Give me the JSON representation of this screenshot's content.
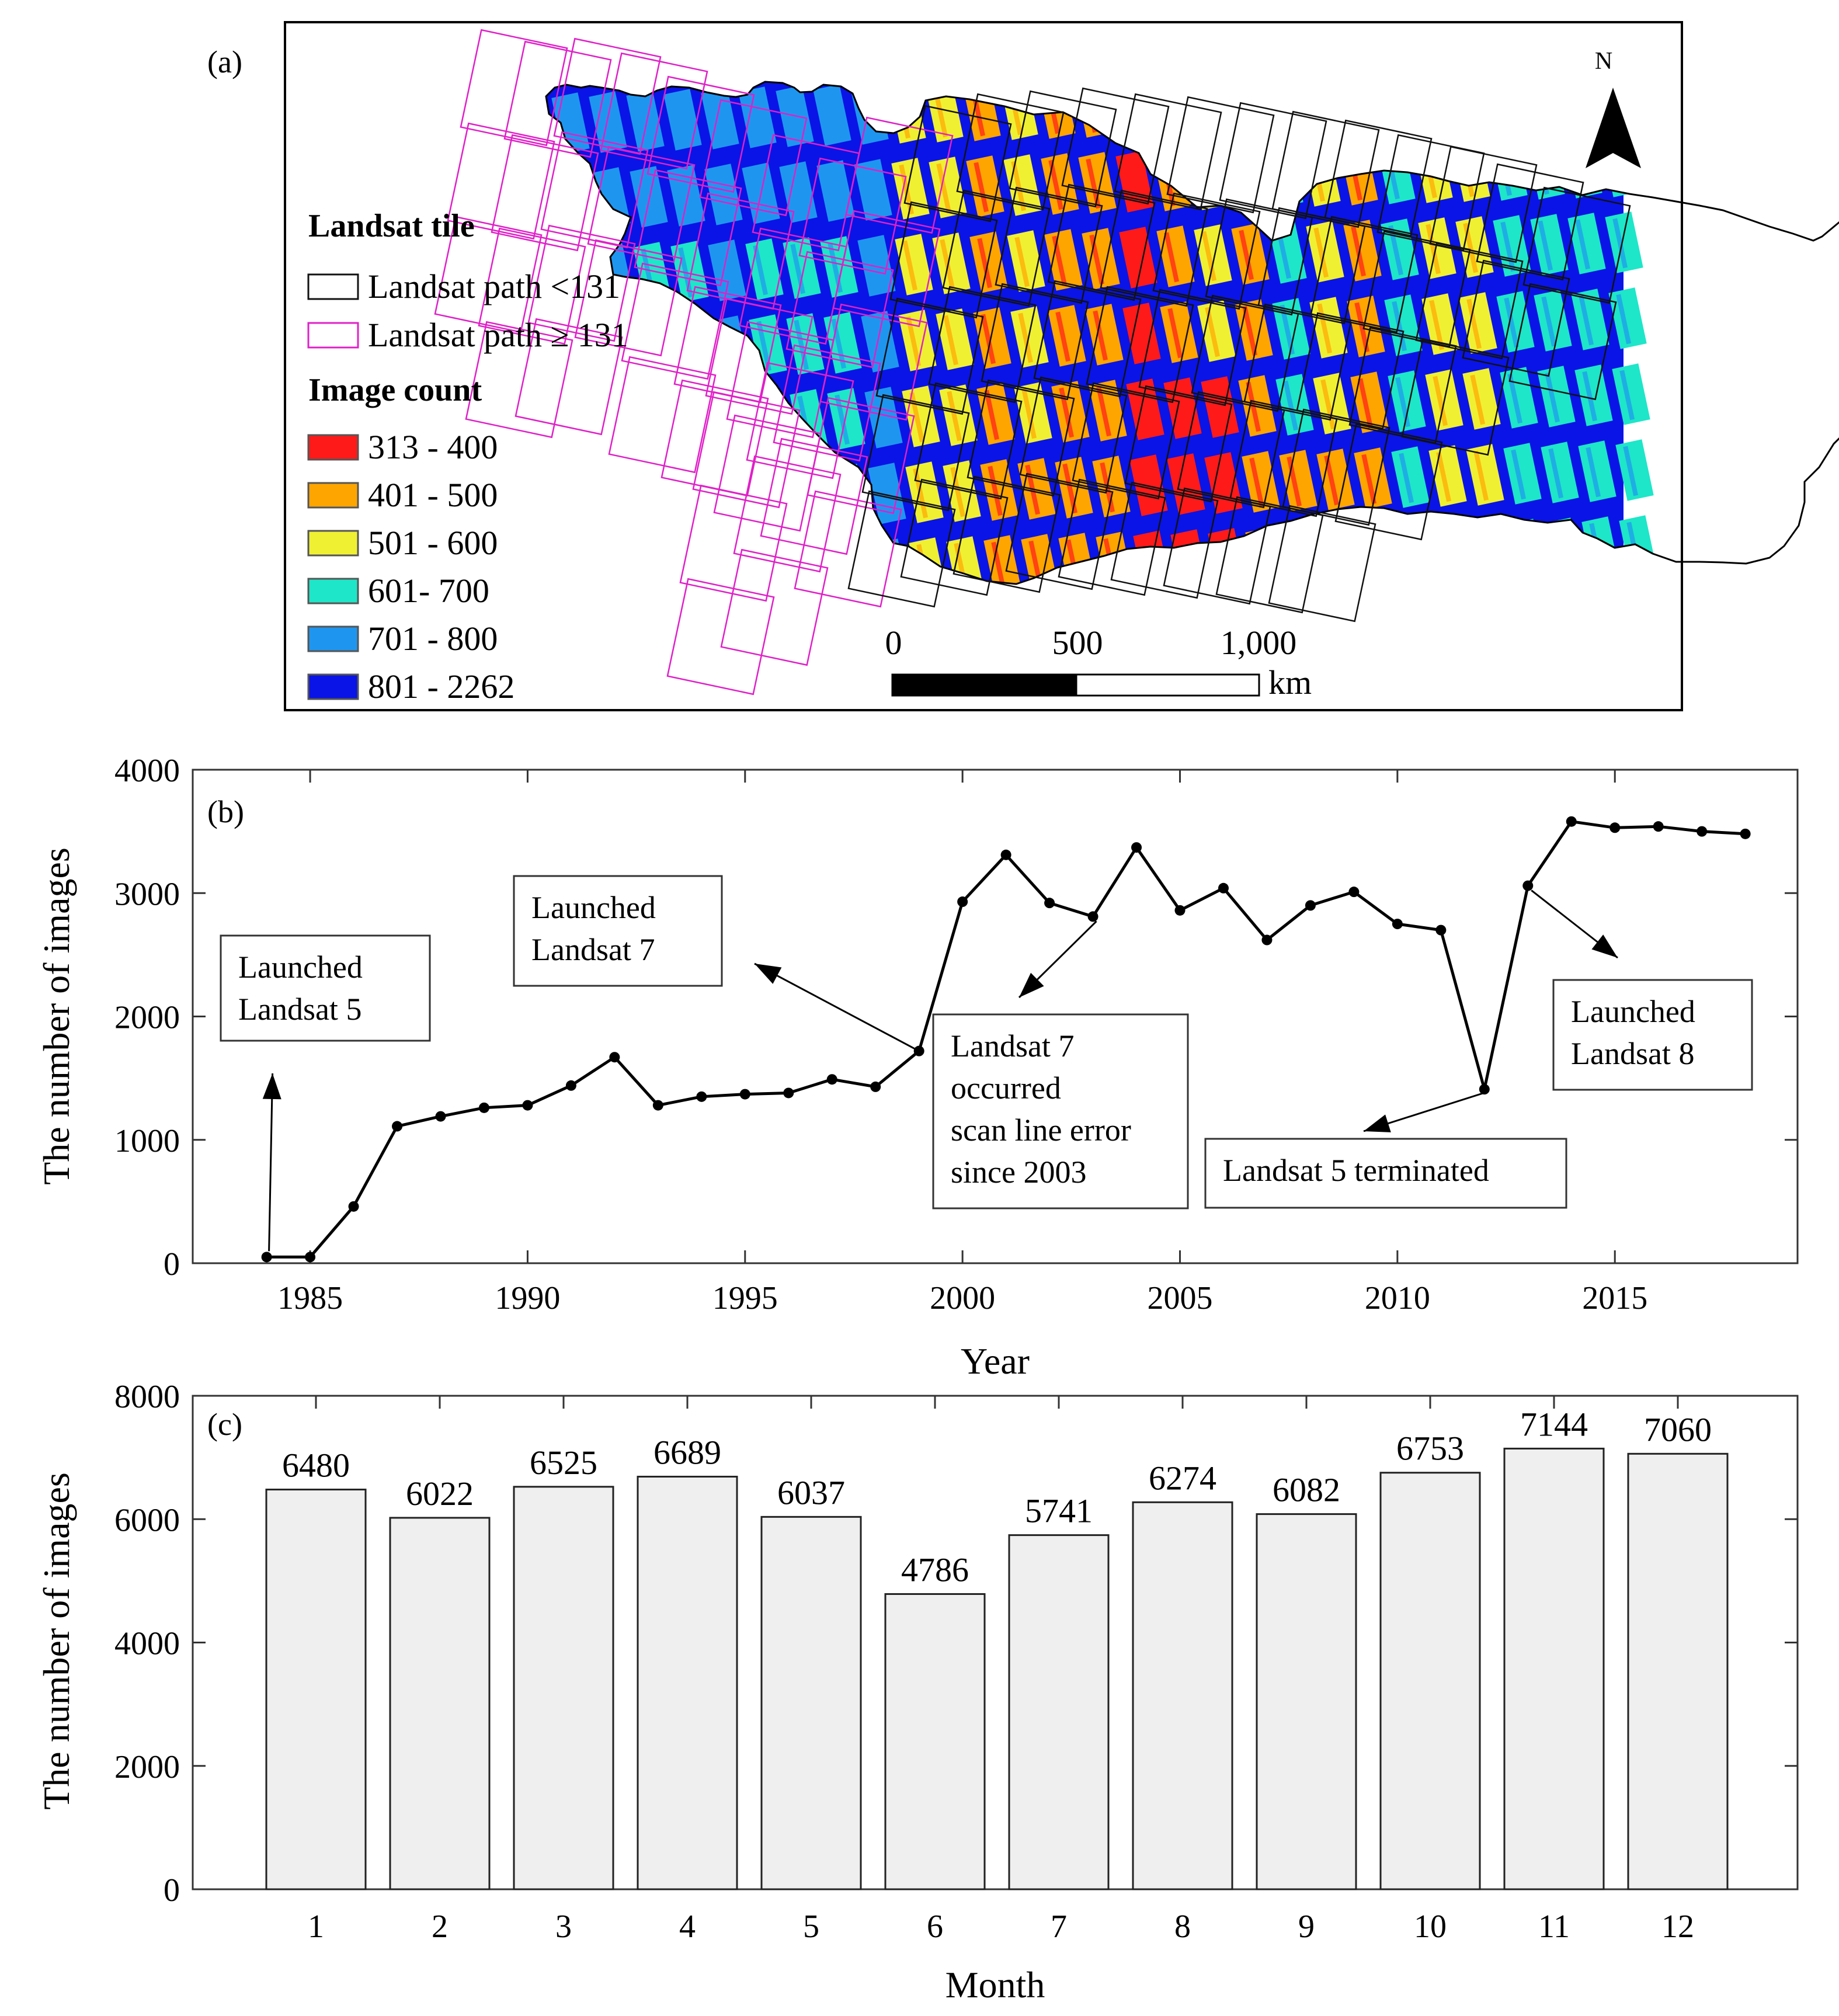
{
  "panel_a": {
    "label": "(a)",
    "north_label": "N",
    "legend_tile_title": "Landsat tile",
    "legend_tiles": [
      {
        "label": "Landsat path <131",
        "color": "#111111"
      },
      {
        "label": "Landsat path ≥ 131",
        "color": "#e020c8"
      }
    ],
    "legend_count_title": "Image count",
    "legend_counts": [
      {
        "label": "313 - 400",
        "color": "#ff1a1a"
      },
      {
        "label": "401 - 500",
        "color": "#ffa500"
      },
      {
        "label": "501 - 600",
        "color": "#f0f032"
      },
      {
        "label": "601- 700",
        "color": "#1ee6c8"
      },
      {
        "label": "701 - 800",
        "color": "#1e96f0"
      },
      {
        "label": "801 - 2262",
        "color": "#0a14e6"
      }
    ],
    "scale_ticks": [
      "0",
      "500",
      "1,000"
    ],
    "scale_unit": "km"
  },
  "chart_data": [
    {
      "panel": "(b)",
      "type": "line",
      "x": [
        1984,
        1985,
        1986,
        1987,
        1988,
        1989,
        1990,
        1991,
        1992,
        1993,
        1994,
        1995,
        1996,
        1997,
        1998,
        1999,
        2000,
        2001,
        2002,
        2003,
        2004,
        2005,
        2006,
        2007,
        2008,
        2009,
        2010,
        2011,
        2012,
        2013,
        2014,
        2015,
        2016,
        2017,
        2018
      ],
      "y": [
        50,
        50,
        460,
        1110,
        1190,
        1260,
        1280,
        1440,
        1670,
        1280,
        1350,
        1370,
        1380,
        1490,
        1430,
        1720,
        2930,
        3310,
        2920,
        2810,
        3370,
        2860,
        3040,
        2620,
        2900,
        3010,
        2750,
        2700,
        1410,
        3060,
        3580,
        3530,
        3540,
        3500,
        3480
      ],
      "xlabel": "Year",
      "ylabel": "The number of images",
      "xlim": [
        1982.3,
        2019.2
      ],
      "ylim": [
        0,
        4000
      ],
      "xticks": [
        1985,
        1990,
        1995,
        2000,
        2005,
        2010,
        2015
      ],
      "yticks": [
        0,
        1000,
        2000,
        3000,
        4000
      ],
      "annotations": [
        {
          "lines": [
            "Launched",
            "Landsat 5"
          ]
        },
        {
          "lines": [
            "Launched",
            "Landsat 7"
          ]
        },
        {
          "lines": [
            "Landsat 7",
            "occurred",
            "scan line error",
            "since 2003"
          ]
        },
        {
          "lines": [
            "Landsat 5 terminated"
          ]
        },
        {
          "lines": [
            "Launched",
            "Landsat 8"
          ]
        }
      ]
    },
    {
      "panel": "(c)",
      "type": "bar",
      "categories": [
        "1",
        "2",
        "3",
        "4",
        "5",
        "6",
        "7",
        "8",
        "9",
        "10",
        "11",
        "12"
      ],
      "values": [
        6480,
        6022,
        6525,
        6689,
        6037,
        4786,
        5741,
        6274,
        6082,
        6753,
        7144,
        7060
      ],
      "xlabel": "Month",
      "ylabel": "The number of images",
      "ylim": [
        0,
        8000
      ],
      "yticks": [
        0,
        2000,
        4000,
        6000,
        8000
      ],
      "bar_color": "#efefef"
    }
  ]
}
